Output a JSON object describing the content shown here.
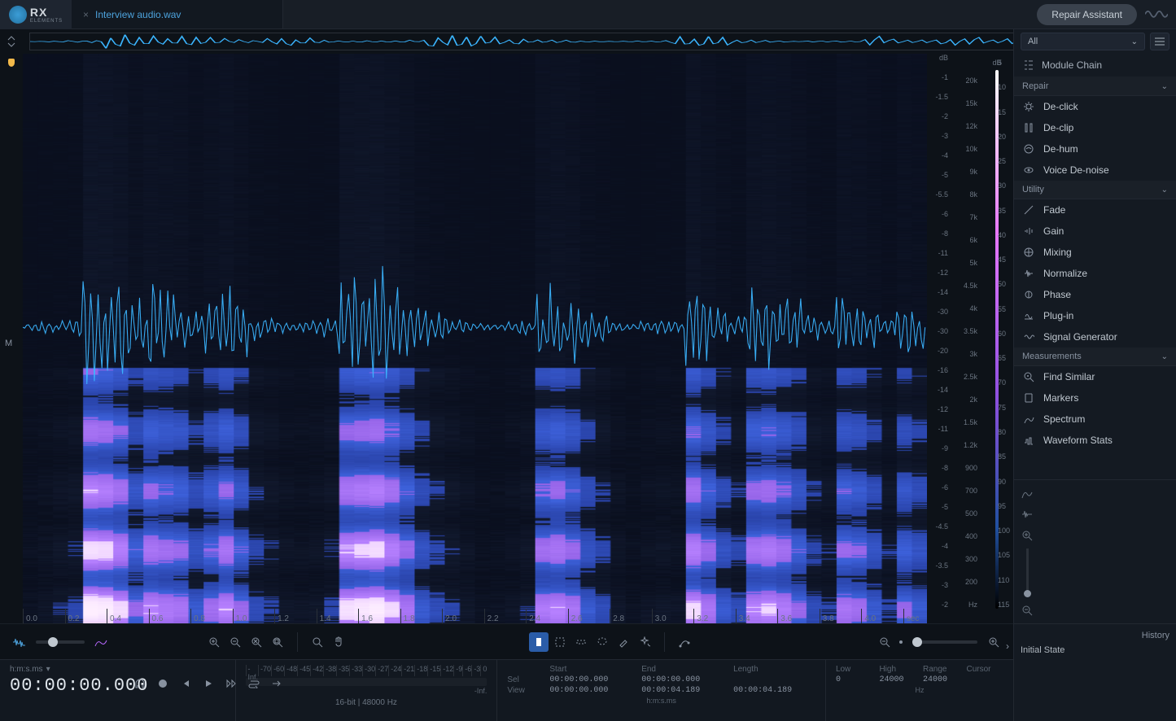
{
  "app": {
    "logo": "RX",
    "logo_sub": "ELEMENTS",
    "tab_filename": "Interview audio.wav",
    "repair_assistant": "Repair Assistant"
  },
  "colors": {
    "bg": "#0d1218",
    "panel": "#141a22",
    "accent_blue": "#4da3dd",
    "waveform": "#3bb5ff",
    "spectro_low": "#1a2a60",
    "spectro_mid": "#4a60d0",
    "spectro_high": "#b868ff",
    "spectro_peak": "#ffffff",
    "playhead": "#f2b94a"
  },
  "sidebar": {
    "filter_dropdown": "All",
    "module_chain": "Module Chain",
    "sections": {
      "repair": {
        "label": "Repair",
        "items": [
          "De-click",
          "De-clip",
          "De-hum",
          "Voice De-noise"
        ]
      },
      "utility": {
        "label": "Utility",
        "items": [
          "Fade",
          "Gain",
          "Mixing",
          "Normalize",
          "Phase",
          "Plug-in",
          "Signal Generator"
        ]
      },
      "measurements": {
        "label": "Measurements",
        "items": [
          "Find Similar",
          "Markers",
          "Spectrum",
          "Waveform Stats"
        ]
      }
    }
  },
  "scales": {
    "db_header": "dB",
    "db_values": [
      "-1",
      "-1.5",
      "-2",
      "-3",
      "-4",
      "-5",
      "-5.5",
      "-6",
      "-8",
      "-11",
      "-12",
      "-14",
      "-30",
      "-30",
      "-20",
      "-16",
      "-14",
      "-12",
      "-11",
      "-9",
      "-8",
      "-6",
      "-5",
      "-4.5",
      "-4",
      "-3.5",
      "-3",
      "-2"
    ],
    "freq_header": "dB",
    "freq_values": [
      "20k",
      "15k",
      "12k",
      "10k",
      "9k",
      "8k",
      "7k",
      "6k",
      "5k",
      "4.5k",
      "4k",
      "3.5k",
      "3k",
      "2.5k",
      "2k",
      "1.5k",
      "1.2k",
      "900",
      "700",
      "500",
      "400",
      "300",
      "200",
      "Hz"
    ],
    "colorbar_values": [
      "5",
      "10",
      "15",
      "20",
      "25",
      "30",
      "35",
      "40",
      "45",
      "50",
      "55",
      "60",
      "65",
      "70",
      "75",
      "80",
      "85",
      "90",
      "95",
      "100",
      "105",
      "110",
      "115"
    ],
    "time_ticks": [
      "0.0",
      "0.2",
      "0.4",
      "0.6",
      "0.8",
      "1.0",
      "1.2",
      "1.4",
      "1.6",
      "1.8",
      "2.0",
      "2.2",
      "2.4",
      "2.6",
      "2.8",
      "3.0",
      "3.2",
      "3.4",
      "3.6",
      "3.8",
      "4.0"
    ],
    "time_unit": "sec",
    "channel": "M"
  },
  "transport": {
    "time_format_label": "h:m:s.ms",
    "current_time": "00:00:00.000"
  },
  "meter": {
    "ticks": [
      "-Inf.",
      "-70",
      "-60",
      "-48",
      "-45",
      "-42",
      "-38",
      "-35",
      "-33",
      "-30",
      "-27",
      "-24",
      "-21",
      "-18",
      "-15",
      "-12",
      "-9",
      "-6",
      "-3",
      "0"
    ],
    "end_label": "-Inf.",
    "format": "16-bit | 48000 Hz"
  },
  "info": {
    "start_label": "Start",
    "end_label": "End",
    "length_label": "Length",
    "sel_label": "Sel",
    "view_label": "View",
    "sel_start": "00:00:00.000",
    "sel_end": "00:00:00.000",
    "sel_length": "",
    "view_start": "00:00:00.000",
    "view_end": "00:00:04.189",
    "view_length": "00:00:04.189",
    "unit": "h:m:s.ms"
  },
  "freq_info": {
    "low_label": "Low",
    "high_label": "High",
    "range_label": "Range",
    "cursor_label": "Cursor",
    "low": "0",
    "high": "24000",
    "range": "24000",
    "cursor": "",
    "unit": "Hz"
  },
  "history": {
    "title": "History",
    "item": "Initial State"
  },
  "spectrogram": {
    "type": "spectrogram+waveform",
    "columns": 60,
    "pattern": [
      0.05,
      0.08,
      0.12,
      0.15,
      0.9,
      0.85,
      0.7,
      0.4,
      0.6,
      0.55,
      0.5,
      0.3,
      0.45,
      0.6,
      0.4,
      0.2,
      0.15,
      0.1,
      0.08,
      0.1,
      0.15,
      0.75,
      0.8,
      0.85,
      0.7,
      0.5,
      0.3,
      0.2,
      0.15,
      0.1,
      0.05,
      0.05,
      0.08,
      0.12,
      0.55,
      0.6,
      0.5,
      0.3,
      0.2,
      0.1,
      0.05,
      0.08,
      0.1,
      0.08,
      0.7,
      0.5,
      0.3,
      0.2,
      0.6,
      0.65,
      0.55,
      0.4,
      0.2,
      0.15,
      0.5,
      0.45,
      0.3,
      0.15,
      0.4,
      0.3
    ]
  }
}
